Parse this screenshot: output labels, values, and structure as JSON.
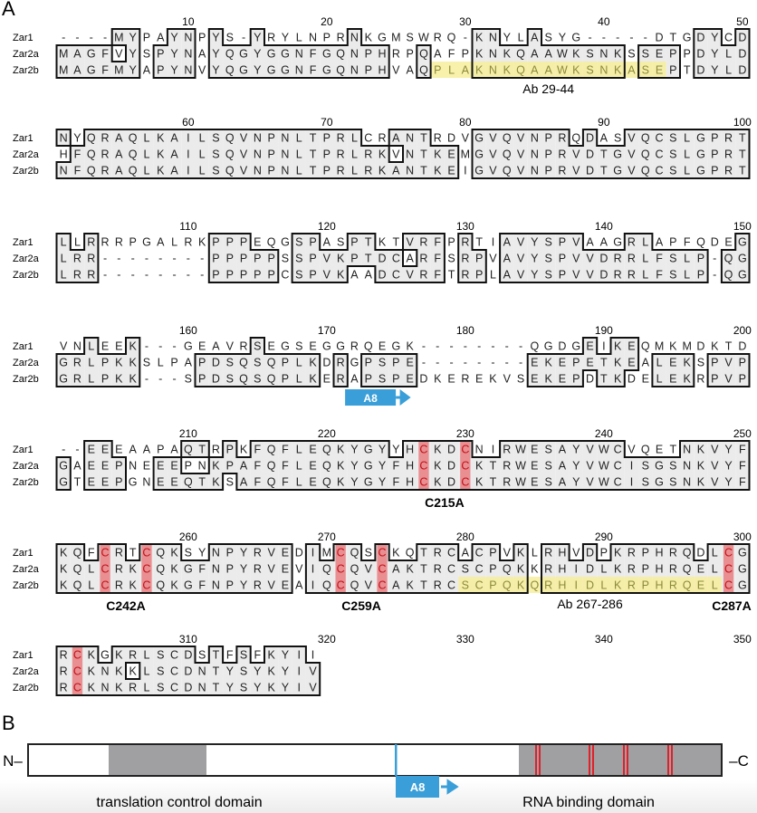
{
  "panel_a_label": "A",
  "panel_b_label": "B",
  "row_names": [
    "Zar1",
    "Zar2a",
    "Zar2b"
  ],
  "blocks": [
    {
      "start": 1,
      "ticks": [
        10,
        20,
        30,
        40,
        50
      ],
      "seqs": [
        "----MYPAYNPYS-YRYLNPRNKGMSWRQ-KNYLASYG-----DTGDYCD",
        "MAGFVYSPYNAYQGYGGNFGQNPHRPQAFPKNKQAAWKSNKSSEPPDYLD",
        "MAGFMYAPYNVYQGYGGNFGQNPHVAQPLAKNKQAAWKSNKASEPTDYLD"
      ]
    },
    {
      "start": 51,
      "ticks": [
        60,
        70,
        80,
        90,
        100
      ],
      "seqs": [
        "NYQRAQLKAILSQVNPNLTPRLCRANTRDVGVQVNPRQDASVQCSLGPRT",
        "HFQRAQLKAILSQVNPNLTPRLRKVNTKEMGVQVNPRVDTGVQCSLGPRT",
        "NFQRAQLKAILSQVNPNLTPRLRKANTKEIGVQVNPRVDTGVQCSLGPRT"
      ]
    },
    {
      "start": 101,
      "ticks": [
        110,
        120,
        130,
        140,
        150
      ],
      "seqs": [
        "LLRRRPGALRKPPPEQGSPASPTKTVRFPRTIAVYSPVAAGRLAPFQDEG",
        "LRR--------PPPPPSSPVKPTDCARFSRPVAVYSPVVDRRLFSLP-QG",
        "LRR--------PPPPPCSPVKAADCVRFTRPLAVYSPVVDRRLFSLP-QG"
      ]
    },
    {
      "start": 151,
      "ticks": [
        160,
        170,
        180,
        190,
        200
      ],
      "seqs": [
        "VNLEEK---GEAVRSEGSEGGRQEGK--------QGDGEIKEQMKMDKTD",
        "GRLPKKSLPAPDSQSQPLKDRGPSPE--------EKEPETKEALEKSPVP",
        "GRLPKK---SPDSQSQPLKERAPSPEDKEREKVSEKEPDTKDELEKRPVP"
      ]
    },
    {
      "start": 201,
      "ticks": [
        210,
        220,
        230,
        240,
        250
      ],
      "seqs": [
        "--EEEAAPAQTRPKFQFLEQKYGYYHCKDCNIRWESAYVWCVQETNKVYF",
        "GAEEPNEEEPNKPAFQFLEQKYGYFHCKDCKTRWESAYVWCISGSNKVYF",
        "GTEEPGNEEQTKSAFQFLEQKYGYFHCKDCKTRWESAYVWCISGSNKVYF"
      ]
    },
    {
      "start": 251,
      "ticks": [
        260,
        270,
        280,
        290,
        300
      ],
      "seqs": [
        "KQFCRTCQKSYNPYRVEDIMCQSCKQTRCACPVKLRHVDPKRPHRQDLCG",
        "KQLCRKCQKGFNPYRVEVIQCQVCAKTRCSCPQKKRHIDLKRPHRQELCG",
        "KQLCRKCQKGFNPYRVEAIQCQVCAKTRCSCPQKQRHIDLKRPHRQELCG"
      ]
    },
    {
      "start": 301,
      "ticks": [
        310,
        320,
        330,
        340,
        350
      ],
      "seqs": [
        "RCKGKRLSCDSTFSFKYII",
        "RCKNKKLSCDNTYSYKYIV",
        "RCKNKRLSCDNTYSYKYIV"
      ]
    }
  ],
  "cysteine_columns": [
    227,
    230,
    254,
    257,
    271,
    274,
    299,
    302
  ],
  "antibody_regions": [
    {
      "label": "Ab 29-44",
      "row": 2,
      "from": 28,
      "to": 44
    },
    {
      "label": "Ab 267-286",
      "row": 2,
      "from": 280,
      "to": 298
    }
  ],
  "mutation_labels": [
    {
      "label": "C215A",
      "column": 228.5
    },
    {
      "label": "C242A",
      "column": 255.5
    },
    {
      "label": "C259A",
      "column": 272.5
    },
    {
      "label": "C287A",
      "column": 300
    }
  ],
  "a8_marker": {
    "label": "A8",
    "column": 173
  },
  "colors": {
    "shade": "#ebebeb",
    "cysteine": "#e8777a",
    "antibody": "#f7ef9e",
    "antibody_text": "#8c8a3a",
    "a8": "#3a9fd8",
    "domain": "#a0a0a2",
    "zinc": "#e0202a"
  },
  "schematic": {
    "n_term": "N–",
    "c_term": "–C",
    "a8_label": "A8",
    "domains": [
      {
        "label": "translation control domain"
      },
      {
        "label": "RNA binding domain"
      }
    ]
  }
}
